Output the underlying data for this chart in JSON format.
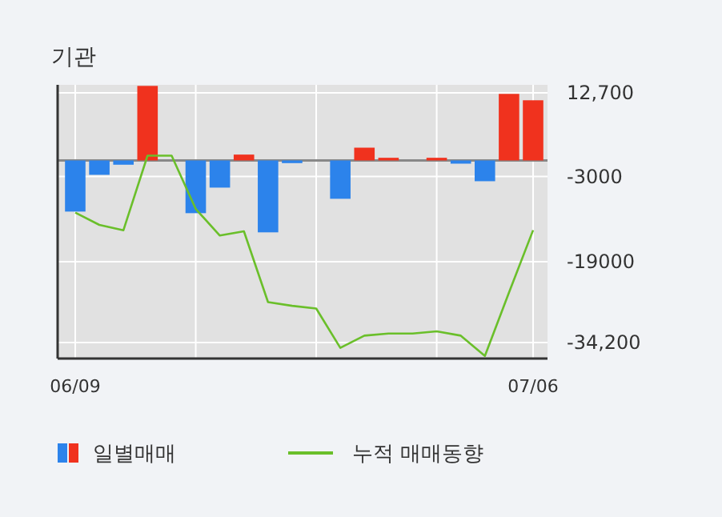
{
  "chart_data": {
    "type": "bar",
    "title": "기관",
    "categories": [
      "06/09",
      null,
      null,
      null,
      null,
      null,
      null,
      null,
      null,
      null,
      null,
      null,
      null,
      null,
      null,
      null,
      null,
      null,
      null,
      "07/06"
    ],
    "series": [
      {
        "name": "일별매매",
        "colors": [
          "#2c83eb",
          "#2c83eb",
          "#2c83eb",
          "#f0321e",
          "#f0321e",
          "#2c83eb",
          "#2c83eb",
          "#f0321e",
          "#2c83eb",
          "#2c83eb",
          "#2c83eb",
          "#2c83eb",
          "#f0321e",
          "#f0321e",
          "#f0321e",
          "#f0321e",
          "#2c83eb",
          "#2c83eb",
          "#f0321e",
          "#f0321e"
        ],
        "values": [
          -9600,
          -2700,
          -800,
          14000,
          0,
          -9900,
          -5100,
          1100,
          -13500,
          -500,
          0,
          -7200,
          2400,
          500,
          0,
          500,
          -600,
          -3900,
          12500,
          11300
        ]
      },
      {
        "name": "누적 매매동향",
        "type": "line",
        "color": "#6abf2a",
        "values": [
          -9800,
          -12100,
          -13100,
          900,
          900,
          -9100,
          -14100,
          -13300,
          -26600,
          -27300,
          -27800,
          -35200,
          -32900,
          -32500,
          -32500,
          -32100,
          -32900,
          -36700,
          -24800,
          -13100
        ]
      }
    ],
    "ylim": [
      -37200,
      14200
    ],
    "yticks": [
      {
        "value": 12700,
        "label": "12,700"
      },
      {
        "value": -3000,
        "label": "-3000"
      },
      {
        "value": -19000,
        "label": "-19000"
      },
      {
        "value": -34200,
        "label": "-34,200"
      }
    ],
    "grid": true,
    "legend": "bottom"
  }
}
